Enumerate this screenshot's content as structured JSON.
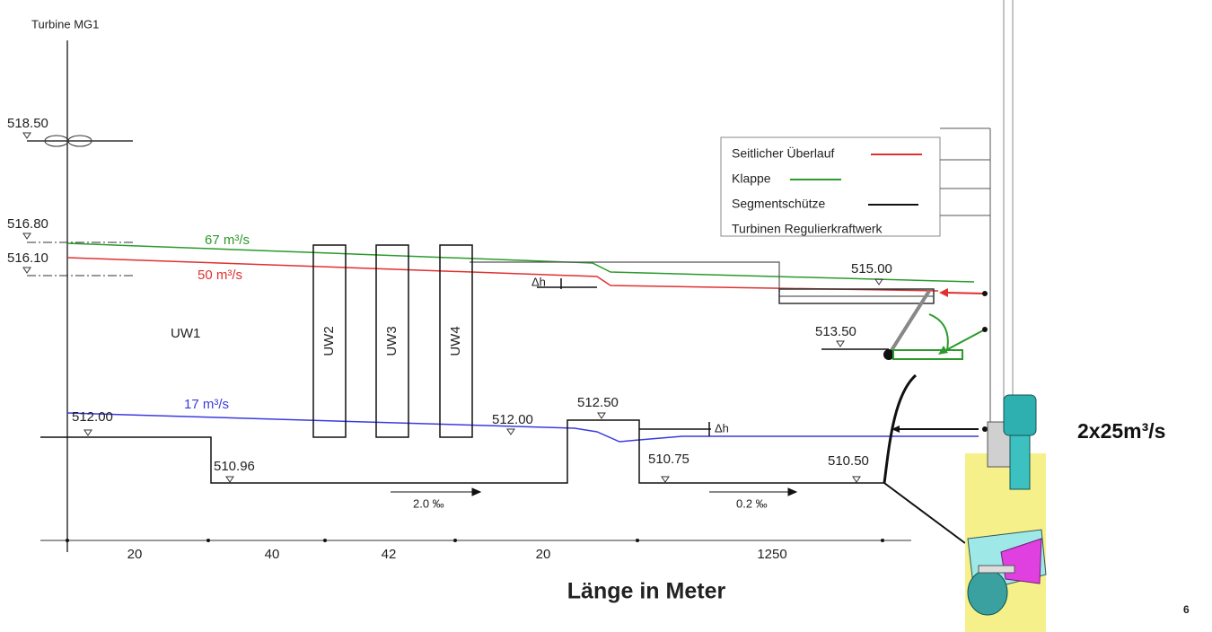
{
  "header": {
    "title": "Turbine MG1"
  },
  "elevations": [
    "518.50",
    "516.80",
    "516.10",
    "512.00",
    "510.96",
    "512.00",
    "512.50",
    "510.75",
    "510.50",
    "515.00",
    "513.50"
  ],
  "flows": [
    "67 m³/s",
    "50 m³/s",
    "17 m³/s"
  ],
  "structures": [
    "UW1",
    "UW2",
    "UW3",
    "UW4"
  ],
  "delta_h": [
    "Δh",
    "Δh"
  ],
  "slopes": [
    "2.0 ‰",
    "0.2 ‰"
  ],
  "segments": [
    "20",
    "40",
    "42",
    "20",
    "1250"
  ],
  "axis_label": "Länge in Meter",
  "legend": [
    "Seitlicher Überlauf",
    "Klappe",
    "Segmentschütze",
    "Turbinen Regulierkraftwerk"
  ],
  "turbine_flow": "2x25m³/s",
  "page_number": "6"
}
